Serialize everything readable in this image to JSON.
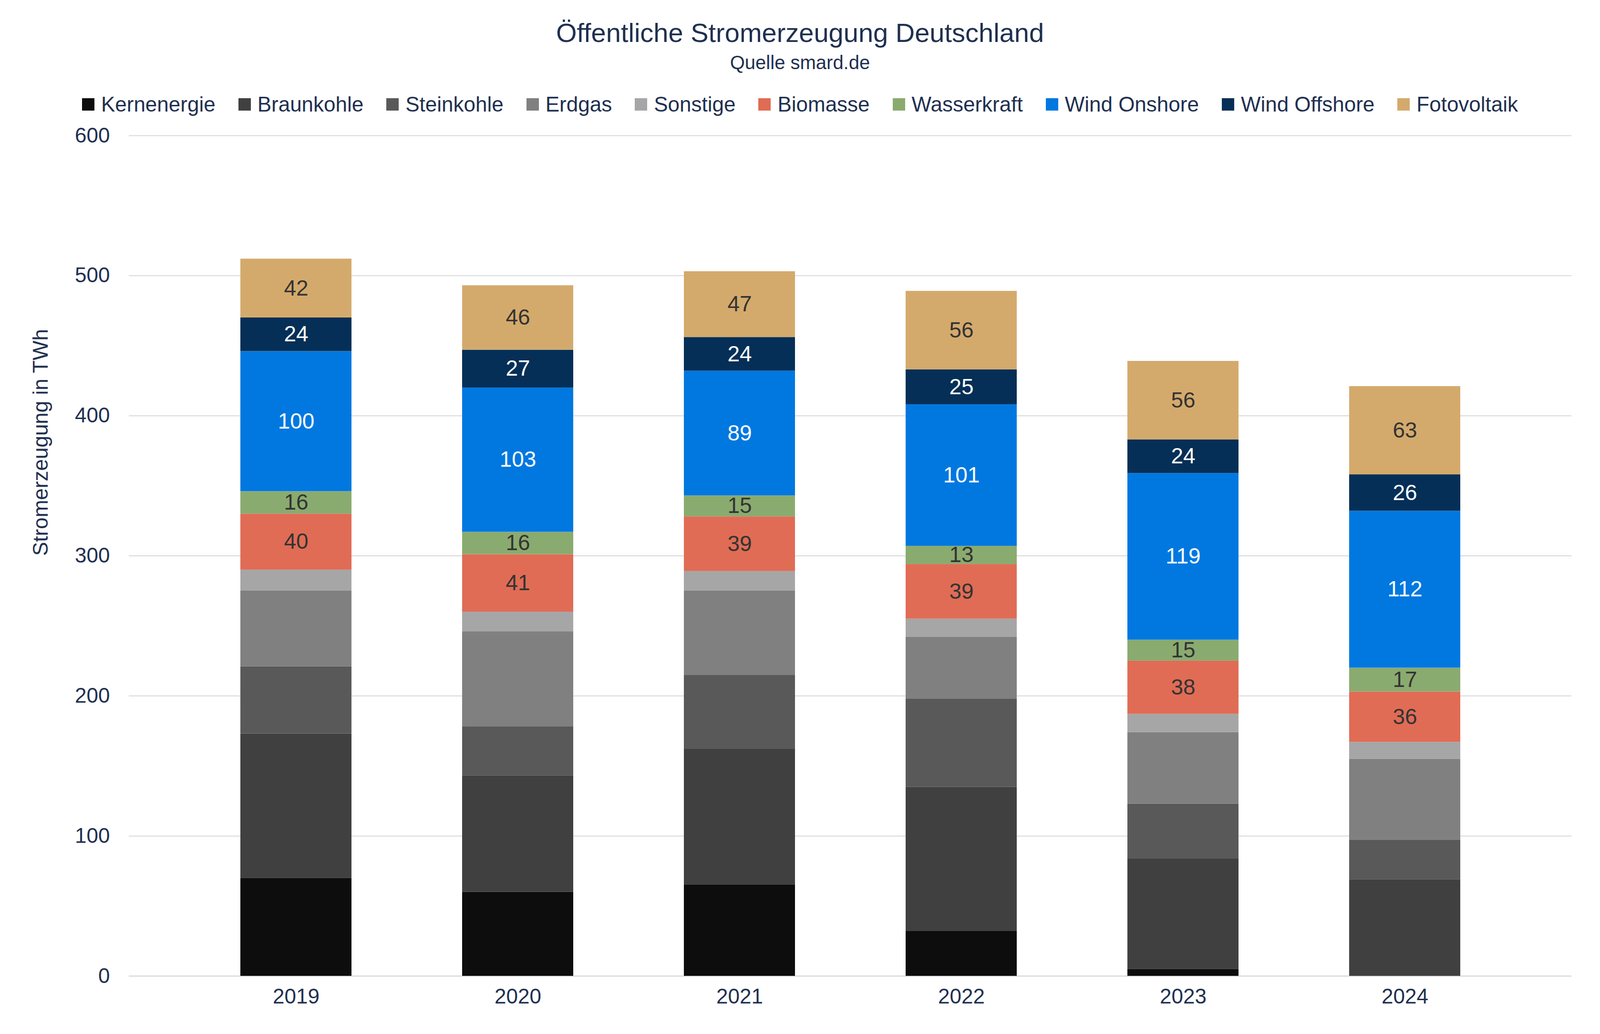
{
  "chart_data": {
    "type": "bar",
    "title": "Öffentliche Stromerzeugung Deutschland",
    "subtitle": "Quelle smard.de",
    "y_label": "Stromerzeugung in TWh",
    "categories": [
      "2019",
      "2020",
      "2021",
      "2022",
      "2023",
      "2024"
    ],
    "stacked": true,
    "grid": true,
    "legend": "top",
    "ylim": [
      0,
      600
    ],
    "yticks": [
      0,
      100,
      200,
      300,
      400,
      500,
      600
    ],
    "series": [
      {
        "name": "Kernenergie",
        "color": "#0d0d0d",
        "data_labels": false,
        "values": [
          70,
          60,
          65,
          32,
          5,
          0
        ]
      },
      {
        "name": "Braunkohle",
        "color": "#404040",
        "data_labels": false,
        "values": [
          103,
          83,
          97,
          103,
          79,
          69
        ]
      },
      {
        "name": "Steinkohle",
        "color": "#595959",
        "data_labels": false,
        "values": [
          48,
          35,
          53,
          63,
          39,
          28
        ]
      },
      {
        "name": "Erdgas",
        "color": "#808080",
        "data_labels": false,
        "values": [
          54,
          68,
          60,
          44,
          51,
          58
        ]
      },
      {
        "name": "Sonstige",
        "color": "#a6a6a6",
        "data_labels": false,
        "values": [
          15,
          14,
          14,
          13,
          13,
          12
        ]
      },
      {
        "name": "Biomasse",
        "color": "#e06c55",
        "data_labels": true,
        "values": [
          40,
          41,
          39,
          39,
          38,
          36
        ]
      },
      {
        "name": "Wasserkraft",
        "color": "#8aab6f",
        "data_labels": true,
        "values": [
          16,
          16,
          15,
          13,
          15,
          17
        ]
      },
      {
        "name": "Wind Onshore",
        "color": "#0078e0",
        "data_labels": true,
        "values": [
          100,
          103,
          89,
          101,
          119,
          112
        ]
      },
      {
        "name": "Wind Offshore",
        "color": "#052f57",
        "data_labels": true,
        "values": [
          24,
          27,
          24,
          25,
          24,
          26
        ]
      },
      {
        "name": "Fotovoltaik",
        "color": "#d4aa6c",
        "data_labels": true,
        "values": [
          42,
          46,
          47,
          56,
          56,
          63
        ]
      }
    ]
  }
}
